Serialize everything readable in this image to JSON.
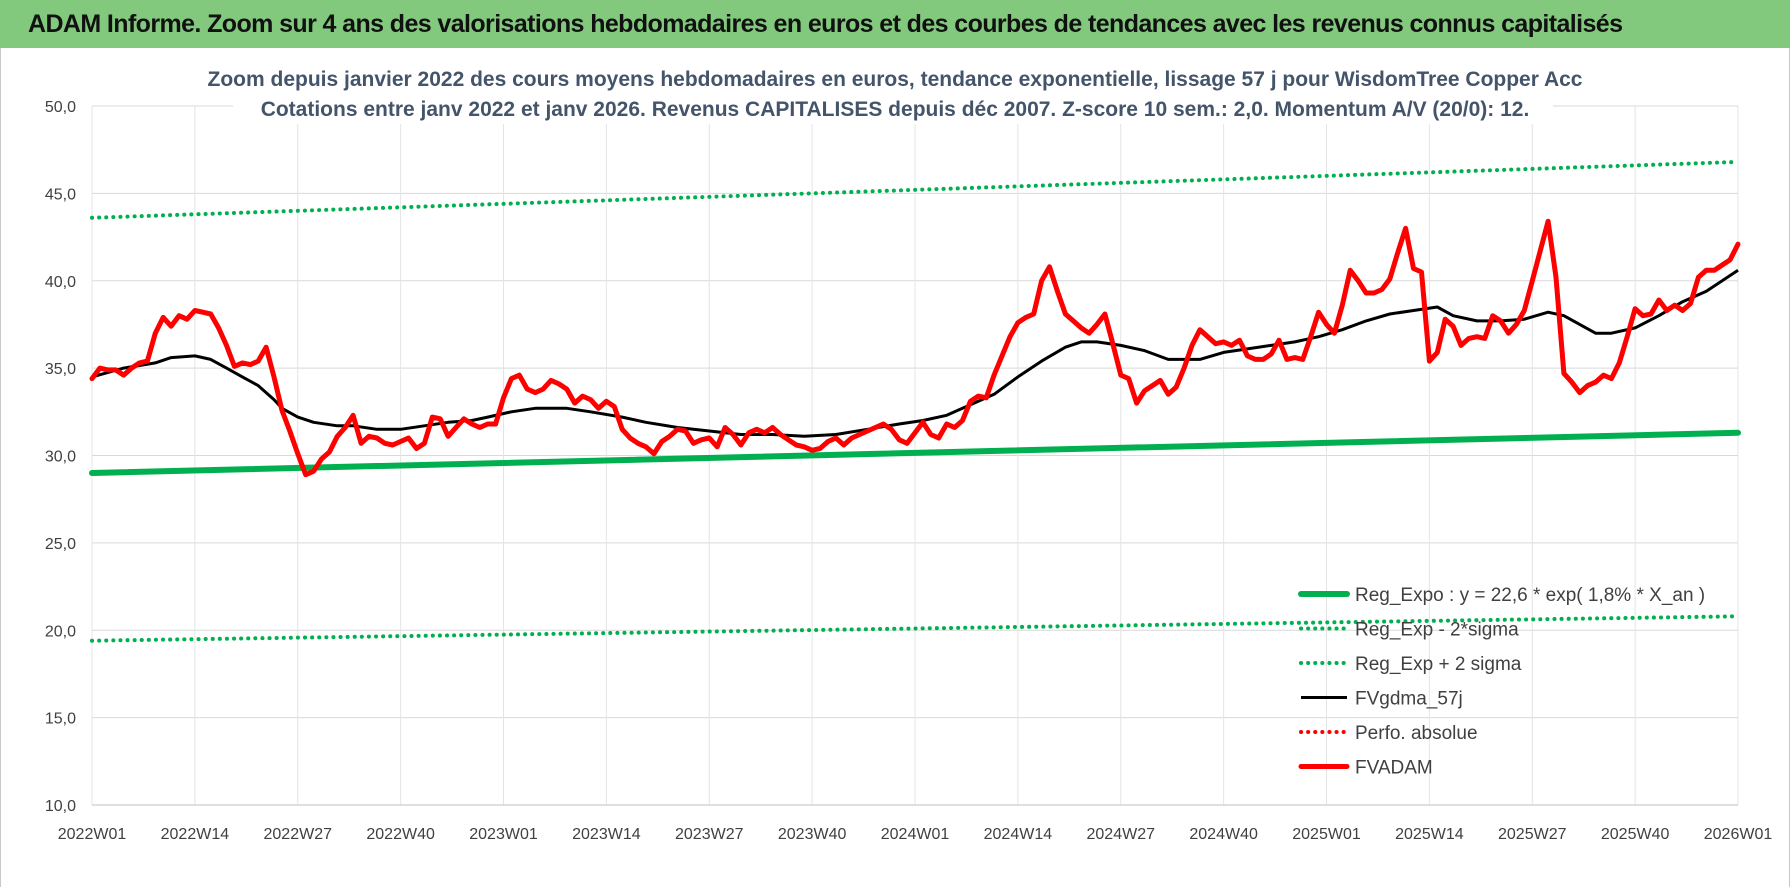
{
  "header": {
    "title": "ADAM Informe. Zoom sur 4 ans des valorisations hebdomadaires en euros et des courbes de tendances avec les revenus connus capitalisés"
  },
  "chart_data": {
    "type": "line",
    "title_line1": "Zoom depuis janvier 2022 des cours moyens hebdomadaires en euros, tendance exponentielle, lissage 57 j pour WisdomTree Copper Acc",
    "title_line2": "Cotations entre janv 2022 et janv 2026. Revenus CAPITALISES depuis déc 2007. Z-score 10 sem.: 2,0. Momentum A/V (20/0): 12.",
    "ylim": [
      10,
      50
    ],
    "y_ticks": [
      "10,0",
      "15,0",
      "20,0",
      "25,0",
      "30,0",
      "35,0",
      "40,0",
      "45,0",
      "50,0"
    ],
    "x_range": [
      0,
      208
    ],
    "x_ticks": [
      {
        "label": "2022W01",
        "x": 0
      },
      {
        "label": "2022W14",
        "x": 13
      },
      {
        "label": "2022W27",
        "x": 26
      },
      {
        "label": "2022W40",
        "x": 39
      },
      {
        "label": "2023W01",
        "x": 52
      },
      {
        "label": "2023W14",
        "x": 65
      },
      {
        "label": "2023W27",
        "x": 78
      },
      {
        "label": "2023W40",
        "x": 91
      },
      {
        "label": "2024W01",
        "x": 104
      },
      {
        "label": "2024W14",
        "x": 117
      },
      {
        "label": "2024W27",
        "x": 130
      },
      {
        "label": "2024W40",
        "x": 143
      },
      {
        "label": "2025W01",
        "x": 156
      },
      {
        "label": "2025W14",
        "x": 169
      },
      {
        "label": "2025W27",
        "x": 182
      },
      {
        "label": "2025W40",
        "x": 195
      },
      {
        "label": "2026W01",
        "x": 208
      }
    ],
    "grid": true,
    "legend_position": "bottom-right",
    "series": [
      {
        "name": "Reg_Expo : y = 22,6 * exp( 1,8% *  X_an )",
        "color": "#00b050",
        "style": "solid-thick",
        "points": [
          [
            0,
            29.0
          ],
          [
            208,
            31.3
          ]
        ]
      },
      {
        "name": "Reg_Exp - 2*sigma",
        "color": "#00b050",
        "style": "dotted",
        "points": [
          [
            0,
            19.4
          ],
          [
            208,
            20.8
          ]
        ]
      },
      {
        "name": "Reg_Exp + 2 sigma",
        "color": "#00b050",
        "style": "dotted",
        "points": [
          [
            0,
            43.6
          ],
          [
            208,
            46.8
          ]
        ]
      },
      {
        "name": "FVgdma_57j",
        "color": "#000000",
        "style": "solid",
        "points": [
          [
            0,
            34.5
          ],
          [
            4,
            35.0
          ],
          [
            8,
            35.3
          ],
          [
            10,
            35.6
          ],
          [
            13,
            35.7
          ],
          [
            15,
            35.5
          ],
          [
            17,
            35.0
          ],
          [
            19,
            34.5
          ],
          [
            21,
            34.0
          ],
          [
            23,
            33.2
          ],
          [
            24,
            32.7
          ],
          [
            26,
            32.2
          ],
          [
            28,
            31.9
          ],
          [
            31,
            31.7
          ],
          [
            33,
            31.7
          ],
          [
            36,
            31.5
          ],
          [
            39,
            31.5
          ],
          [
            42,
            31.7
          ],
          [
            45,
            31.9
          ],
          [
            48,
            32.0
          ],
          [
            50,
            32.2
          ],
          [
            53,
            32.5
          ],
          [
            56,
            32.7
          ],
          [
            60,
            32.7
          ],
          [
            63,
            32.5
          ],
          [
            67,
            32.2
          ],
          [
            70,
            31.9
          ],
          [
            74,
            31.6
          ],
          [
            78,
            31.4
          ],
          [
            82,
            31.2
          ],
          [
            86,
            31.2
          ],
          [
            90,
            31.1
          ],
          [
            94,
            31.2
          ],
          [
            98,
            31.5
          ],
          [
            102,
            31.8
          ],
          [
            105,
            32.0
          ],
          [
            108,
            32.3
          ],
          [
            111,
            32.9
          ],
          [
            114,
            33.5
          ],
          [
            117,
            34.5
          ],
          [
            120,
            35.4
          ],
          [
            123,
            36.2
          ],
          [
            125,
            36.5
          ],
          [
            127,
            36.5
          ],
          [
            130,
            36.3
          ],
          [
            133,
            36.0
          ],
          [
            136,
            35.5
          ],
          [
            140,
            35.5
          ],
          [
            143,
            35.9
          ],
          [
            146,
            36.1
          ],
          [
            149,
            36.3
          ],
          [
            152,
            36.5
          ],
          [
            155,
            36.8
          ],
          [
            158,
            37.2
          ],
          [
            161,
            37.7
          ],
          [
            164,
            38.1
          ],
          [
            167,
            38.3
          ],
          [
            170,
            38.5
          ],
          [
            172,
            38.0
          ],
          [
            175,
            37.7
          ],
          [
            178,
            37.7
          ],
          [
            181,
            37.8
          ],
          [
            184,
            38.2
          ],
          [
            186,
            38.0
          ],
          [
            188,
            37.5
          ],
          [
            190,
            37.0
          ],
          [
            192,
            37.0
          ],
          [
            195,
            37.3
          ],
          [
            198,
            38.0
          ],
          [
            201,
            38.8
          ],
          [
            204,
            39.4
          ],
          [
            206,
            40.0
          ],
          [
            208,
            40.6
          ]
        ]
      },
      {
        "name": "Perfo. absolue",
        "color": "#ff0000",
        "style": "dotted",
        "points": []
      },
      {
        "name": "FVADAM",
        "color": "#ff0000",
        "style": "solid-thick",
        "points": [
          [
            0,
            34.4
          ],
          [
            1,
            35.0
          ],
          [
            2,
            34.9
          ],
          [
            3,
            34.9
          ],
          [
            4,
            34.6
          ],
          [
            5,
            35.0
          ],
          [
            6,
            35.3
          ],
          [
            7,
            35.4
          ],
          [
            8,
            37.0
          ],
          [
            9,
            37.9
          ],
          [
            10,
            37.4
          ],
          [
            11,
            38.0
          ],
          [
            12,
            37.8
          ],
          [
            13,
            38.3
          ],
          [
            14,
            38.2
          ],
          [
            15,
            38.1
          ],
          [
            16,
            37.3
          ],
          [
            17,
            36.3
          ],
          [
            18,
            35.1
          ],
          [
            19,
            35.3
          ],
          [
            20,
            35.2
          ],
          [
            21,
            35.4
          ],
          [
            22,
            36.2
          ],
          [
            23,
            34.5
          ],
          [
            24,
            32.6
          ],
          [
            25,
            31.4
          ],
          [
            26,
            30.1
          ],
          [
            27,
            28.9
          ],
          [
            28,
            29.1
          ],
          [
            29,
            29.8
          ],
          [
            30,
            30.2
          ],
          [
            31,
            31.1
          ],
          [
            32,
            31.6
          ],
          [
            33,
            32.3
          ],
          [
            34,
            30.7
          ],
          [
            35,
            31.1
          ],
          [
            36,
            31.0
          ],
          [
            37,
            30.7
          ],
          [
            38,
            30.6
          ],
          [
            39,
            30.8
          ],
          [
            40,
            31.0
          ],
          [
            41,
            30.4
          ],
          [
            42,
            30.7
          ],
          [
            43,
            32.2
          ],
          [
            44,
            32.1
          ],
          [
            45,
            31.1
          ],
          [
            46,
            31.6
          ],
          [
            47,
            32.1
          ],
          [
            48,
            31.8
          ],
          [
            49,
            31.6
          ],
          [
            50,
            31.8
          ],
          [
            51,
            31.8
          ],
          [
            52,
            33.3
          ],
          [
            53,
            34.4
          ],
          [
            54,
            34.6
          ],
          [
            55,
            33.8
          ],
          [
            56,
            33.6
          ],
          [
            57,
            33.8
          ],
          [
            58,
            34.3
          ],
          [
            59,
            34.1
          ],
          [
            60,
            33.8
          ],
          [
            61,
            33.0
          ],
          [
            62,
            33.4
          ],
          [
            63,
            33.2
          ],
          [
            64,
            32.7
          ],
          [
            65,
            33.1
          ],
          [
            66,
            32.8
          ],
          [
            67,
            31.5
          ],
          [
            68,
            31.0
          ],
          [
            69,
            30.7
          ],
          [
            70,
            30.5
          ],
          [
            71,
            30.1
          ],
          [
            72,
            30.8
          ],
          [
            73,
            31.1
          ],
          [
            74,
            31.5
          ],
          [
            75,
            31.4
          ],
          [
            76,
            30.7
          ],
          [
            77,
            30.9
          ],
          [
            78,
            31.0
          ],
          [
            79,
            30.5
          ],
          [
            80,
            31.6
          ],
          [
            81,
            31.2
          ],
          [
            82,
            30.6
          ],
          [
            83,
            31.3
          ],
          [
            84,
            31.5
          ],
          [
            85,
            31.3
          ],
          [
            86,
            31.6
          ],
          [
            87,
            31.2
          ],
          [
            88,
            30.9
          ],
          [
            89,
            30.6
          ],
          [
            90,
            30.5
          ],
          [
            91,
            30.3
          ],
          [
            92,
            30.4
          ],
          [
            93,
            30.8
          ],
          [
            94,
            31.0
          ],
          [
            95,
            30.6
          ],
          [
            96,
            31.0
          ],
          [
            97,
            31.2
          ],
          [
            98,
            31.4
          ],
          [
            99,
            31.6
          ],
          [
            100,
            31.8
          ],
          [
            101,
            31.5
          ],
          [
            102,
            30.9
          ],
          [
            103,
            30.7
          ],
          [
            104,
            31.3
          ],
          [
            105,
            31.9
          ],
          [
            106,
            31.2
          ],
          [
            107,
            31.0
          ],
          [
            108,
            31.8
          ],
          [
            109,
            31.6
          ],
          [
            110,
            32.0
          ],
          [
            111,
            33.1
          ],
          [
            112,
            33.4
          ],
          [
            113,
            33.3
          ],
          [
            114,
            34.6
          ],
          [
            115,
            35.7
          ],
          [
            116,
            36.8
          ],
          [
            117,
            37.6
          ],
          [
            118,
            37.9
          ],
          [
            119,
            38.1
          ],
          [
            120,
            40.0
          ],
          [
            121,
            40.8
          ],
          [
            122,
            39.4
          ],
          [
            123,
            38.1
          ],
          [
            124,
            37.7
          ],
          [
            125,
            37.3
          ],
          [
            126,
            37.0
          ],
          [
            127,
            37.5
          ],
          [
            128,
            38.1
          ],
          [
            129,
            36.4
          ],
          [
            130,
            34.6
          ],
          [
            131,
            34.4
          ],
          [
            132,
            33.0
          ],
          [
            133,
            33.7
          ],
          [
            134,
            34.0
          ],
          [
            135,
            34.3
          ],
          [
            136,
            33.5
          ],
          [
            137,
            33.9
          ],
          [
            138,
            35.0
          ],
          [
            139,
            36.3
          ],
          [
            140,
            37.2
          ],
          [
            141,
            36.8
          ],
          [
            142,
            36.4
          ],
          [
            143,
            36.5
          ],
          [
            144,
            36.3
          ],
          [
            145,
            36.6
          ],
          [
            146,
            35.7
          ],
          [
            147,
            35.5
          ],
          [
            148,
            35.5
          ],
          [
            149,
            35.8
          ],
          [
            150,
            36.6
          ],
          [
            151,
            35.5
          ],
          [
            152,
            35.6
          ],
          [
            153,
            35.5
          ],
          [
            154,
            36.8
          ],
          [
            155,
            38.2
          ],
          [
            156,
            37.5
          ],
          [
            157,
            37.0
          ],
          [
            158,
            38.6
          ],
          [
            159,
            40.6
          ],
          [
            160,
            40.0
          ],
          [
            161,
            39.3
          ],
          [
            162,
            39.3
          ],
          [
            163,
            39.5
          ],
          [
            164,
            40.1
          ],
          [
            165,
            41.6
          ],
          [
            166,
            43.0
          ],
          [
            167,
            40.7
          ],
          [
            168,
            40.5
          ],
          [
            169,
            35.4
          ],
          [
            170,
            35.9
          ],
          [
            171,
            37.8
          ],
          [
            172,
            37.4
          ],
          [
            173,
            36.3
          ],
          [
            174,
            36.7
          ],
          [
            175,
            36.8
          ],
          [
            176,
            36.7
          ],
          [
            177,
            38.0
          ],
          [
            178,
            37.7
          ],
          [
            179,
            37.0
          ],
          [
            180,
            37.5
          ],
          [
            181,
            38.3
          ],
          [
            182,
            40.0
          ],
          [
            183,
            41.7
          ],
          [
            184,
            43.4
          ],
          [
            185,
            40.2
          ],
          [
            186,
            34.7
          ],
          [
            187,
            34.2
          ],
          [
            188,
            33.6
          ],
          [
            189,
            34.0
          ],
          [
            190,
            34.2
          ],
          [
            191,
            34.6
          ],
          [
            192,
            34.4
          ],
          [
            193,
            35.3
          ],
          [
            194,
            36.8
          ],
          [
            195,
            38.4
          ],
          [
            196,
            38.0
          ],
          [
            197,
            38.1
          ],
          [
            198,
            38.9
          ],
          [
            199,
            38.3
          ],
          [
            200,
            38.6
          ],
          [
            201,
            38.3
          ],
          [
            202,
            38.7
          ],
          [
            203,
            40.2
          ],
          [
            204,
            40.6
          ],
          [
            205,
            40.6
          ],
          [
            206,
            40.9
          ],
          [
            207,
            41.2
          ],
          [
            208,
            42.1
          ]
        ]
      }
    ]
  }
}
